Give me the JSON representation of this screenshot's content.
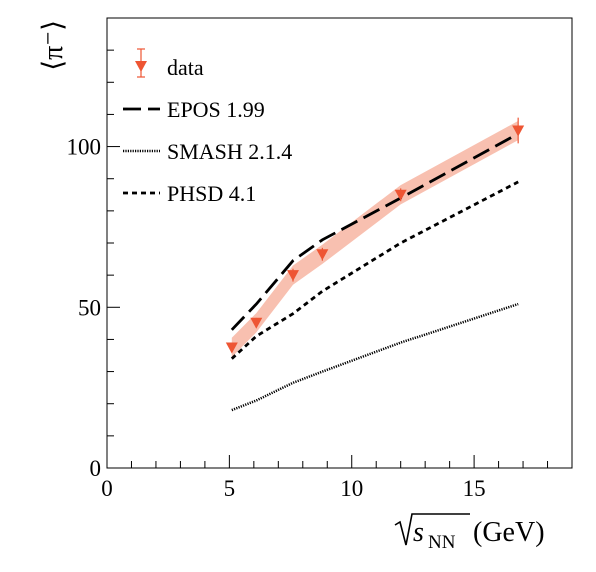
{
  "chart_data": {
    "type": "line",
    "xlabel_unit": "(GeV)",
    "xlabel_var": "s",
    "xlabel_sub": "NN",
    "ylabel": "⟨π⁻⟩",
    "xlim": [
      0,
      19
    ],
    "ylim": [
      0,
      140
    ],
    "x_ticks": [
      0,
      5,
      10,
      15
    ],
    "y_ticks": [
      0,
      50,
      100
    ],
    "legend_position": "top-left",
    "series": [
      {
        "name": "data",
        "style": "marker",
        "color": "#ee5533",
        "band_color": "#f8c0b0",
        "x": [
          5.1,
          6.1,
          7.6,
          8.8,
          12.0,
          16.8
        ],
        "values": [
          37.5,
          45.2,
          60.0,
          66.5,
          85.0,
          105.0
        ],
        "errors": [
          1.5,
          1.5,
          2.0,
          2.0,
          2.0,
          4.0
        ],
        "band_width": 3.0
      },
      {
        "name": "EPOS 1.99",
        "style": "dashed",
        "color": "#000000",
        "x": [
          5.1,
          6.1,
          7.6,
          8.8,
          12.0,
          16.8
        ],
        "values": [
          43.0,
          51.0,
          64.5,
          71.0,
          84.0,
          104.0
        ]
      },
      {
        "name": "SMASH 2.1.4",
        "style": "dotted",
        "color": "#000000",
        "x": [
          5.1,
          6.1,
          7.6,
          8.8,
          12.0,
          16.8
        ],
        "values": [
          18.0,
          21.0,
          26.5,
          30.0,
          39.0,
          51.0
        ]
      },
      {
        "name": "PHSD 4.1",
        "style": "dash-dot",
        "color": "#000000",
        "x": [
          5.1,
          6.1,
          7.6,
          8.8,
          12.0,
          16.8
        ],
        "values": [
          34.0,
          41.0,
          48.0,
          55.0,
          70.0,
          89.0
        ]
      }
    ]
  }
}
